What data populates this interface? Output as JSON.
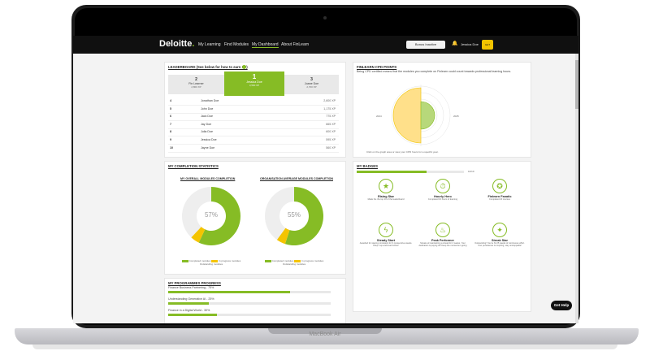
{
  "device": {
    "label": "MacBook Air"
  },
  "nav": {
    "logo": "Deloitte",
    "logo_dot": ".",
    "links": [
      "My Learning",
      "Find Modules",
      "My Dashboard",
      "About FinLearn"
    ],
    "bonus": "Bonus Inactive",
    "user": "Jessica Doe",
    "avatar": "GET HELP ASAP"
  },
  "leaderboard": {
    "title": "LEADERBOARD (See below for how to earn XP)",
    "podium": [
      {
        "rank": "2",
        "name": "Fin Learner",
        "xp": "2,800 XP"
      },
      {
        "rank": "1",
        "name": "Jessica Doe",
        "xp": "3,500 XP"
      },
      {
        "rank": "3",
        "name": "Joane Doe",
        "xp": "2,700 XP"
      }
    ],
    "rows": [
      {
        "rank": "4",
        "name": "Jonathan Doe",
        "xp": "2,600 XP"
      },
      {
        "rank": "5",
        "name": "John Doe",
        "xp": "1,175 XP"
      },
      {
        "rank": "6",
        "name": "Jack Doe",
        "xp": "775 XP"
      },
      {
        "rank": "7",
        "name": "Jay Doe",
        "xp": "665 XP"
      },
      {
        "rank": "8",
        "name": "Julia Doe",
        "xp": "600 XP"
      },
      {
        "rank": "9",
        "name": "Jessica Doe",
        "xp": "595 XP"
      },
      {
        "rank": "10",
        "name": "Jayne Doe",
        "xp": "560 XP"
      }
    ]
  },
  "cpd": {
    "title": "FINLEARN CPD POINTS",
    "desc": "Being CPD certified means that the modules you complete on Finlearn could count towards professional learning hours.",
    "year_left": "2024",
    "year_right": "2025",
    "caption": "Click on the graph area or view your CPD hours for a specific year."
  },
  "completion": {
    "title": "MY COMPLETION STATISTICS",
    "overall": {
      "title": "MY OVERALL MODULES COMPLETION",
      "percent": "57%",
      "completed": 0.57,
      "in_progress": 0.05
    },
    "org": {
      "title": "ORGANISATION AVERAGE MODULES COMPLETION",
      "percent": "55%",
      "completed": 0.55,
      "in_progress": 0.05
    },
    "legend_completed": "Completed modules",
    "legend_in_progress": "In progress modules",
    "legend_outstanding": "Outstanding modules",
    "colors": {
      "completed": "#86bc25",
      "in_progress": "#f4c400",
      "outstanding": "#eeeeee"
    }
  },
  "badges": {
    "title": "MY BADGES",
    "count": "10/10",
    "progress": 0.65,
    "items": [
      {
        "title": "Rising Star",
        "desc": "Made the the top 10 of the leaderboard",
        "icon": "star-icon",
        "glyph": "★"
      },
      {
        "title": "Hourly Hero",
        "desc": "Completed 10 hours of learning",
        "icon": "clock-icon",
        "glyph": "⏱"
      },
      {
        "title": "Finlearn Fanatic",
        "desc": "Completed 20 courses",
        "icon": "medal-icon",
        "glyph": "✪"
      },
      {
        "title": "Steady Start",
        "desc": "Awarded for staying consistent for 3 consecutive weeks. Keep it up and level further!",
        "icon": "bolt-icon",
        "glyph": "ϟ"
      },
      {
        "title": "Peak Performer",
        "desc": "Streak ed maintaining a streak for 4 weeks. Your dedication is paying off! Keep the momentum going",
        "icon": "flame-icon",
        "glyph": "♨"
      },
      {
        "title": "Streak Star",
        "desc": "Outstanding! You've hit 25 weeks of continuous effort. Your persistence is inspiring, stay unstoppable!",
        "icon": "shooting-star-icon",
        "glyph": "✦"
      }
    ]
  },
  "programmes": {
    "title": "MY PROGRAMMES PROGRESS",
    "items": [
      {
        "label": "Finance Business Partnering - 75%",
        "value": 0.75
      },
      {
        "label": "Understanding Generative AI - 25%",
        "value": 0.25
      },
      {
        "label": "Finance in a Digital World - 30%",
        "value": 0.3
      }
    ]
  },
  "help": {
    "label": "Get Help"
  }
}
